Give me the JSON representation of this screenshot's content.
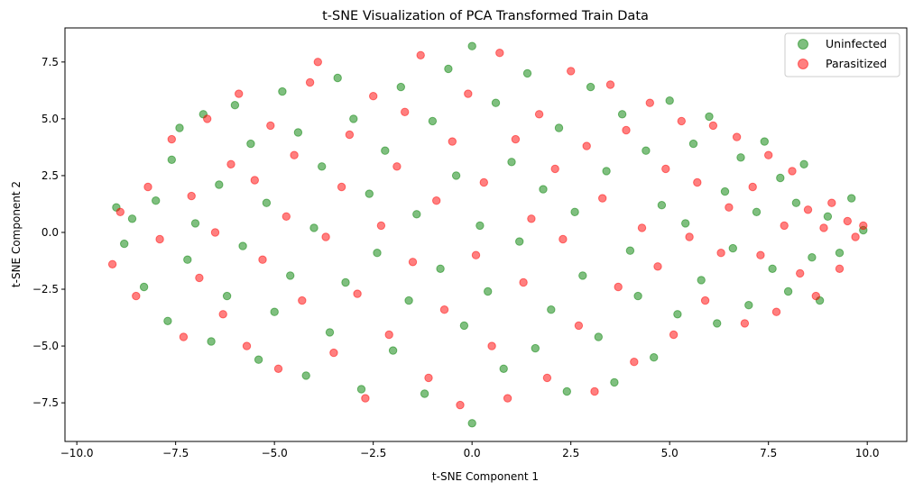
{
  "chart_data": {
    "type": "scatter",
    "title": "t-SNE Visualization of PCA Transformed Train Data",
    "xlabel": "t-SNE Component 1",
    "ylabel": "t-SNE Component 2",
    "xlim": [
      -10.3,
      11.0
    ],
    "ylim": [
      -9.2,
      9.0
    ],
    "xticks": [
      -10.0,
      -7.5,
      -5.0,
      -2.5,
      0.0,
      2.5,
      5.0,
      7.5,
      10.0
    ],
    "xtick_labels": [
      "−10.0",
      "−7.5",
      "−5.0",
      "−2.5",
      "0.0",
      "2.5",
      "5.0",
      "7.5",
      "10.0"
    ],
    "yticks": [
      -7.5,
      -5.0,
      -2.5,
      0.0,
      2.5,
      5.0,
      7.5
    ],
    "ytick_labels": [
      "−7.5",
      "−5.0",
      "−2.5",
      "0.0",
      "2.5",
      "5.0",
      "7.5"
    ],
    "grid": false,
    "legend_position": "top-right",
    "marker_alpha": 0.5,
    "series": [
      {
        "name": "Uninfected",
        "color": "#008000",
        "points": [
          [
            -9.0,
            1.1
          ],
          [
            -8.8,
            -0.5
          ],
          [
            -8.6,
            0.6
          ],
          [
            -8.3,
            -2.4
          ],
          [
            -8.0,
            1.4
          ],
          [
            -7.7,
            -3.9
          ],
          [
            -7.6,
            3.2
          ],
          [
            -7.4,
            4.6
          ],
          [
            -7.2,
            -1.2
          ],
          [
            -7.0,
            0.4
          ],
          [
            -6.8,
            5.2
          ],
          [
            -6.6,
            -4.8
          ],
          [
            -6.4,
            2.1
          ],
          [
            -6.2,
            -2.8
          ],
          [
            -6.0,
            5.6
          ],
          [
            -5.8,
            -0.6
          ],
          [
            -5.6,
            3.9
          ],
          [
            -5.4,
            -5.6
          ],
          [
            -5.2,
            1.3
          ],
          [
            -5.0,
            -3.5
          ],
          [
            -4.8,
            6.2
          ],
          [
            -4.6,
            -1.9
          ],
          [
            -4.4,
            4.4
          ],
          [
            -4.2,
            -6.3
          ],
          [
            -4.0,
            0.2
          ],
          [
            -3.8,
            2.9
          ],
          [
            -3.6,
            -4.4
          ],
          [
            -3.4,
            6.8
          ],
          [
            -3.2,
            -2.2
          ],
          [
            -3.0,
            5.0
          ],
          [
            -2.8,
            -6.9
          ],
          [
            -2.6,
            1.7
          ],
          [
            -2.4,
            -0.9
          ],
          [
            -2.2,
            3.6
          ],
          [
            -2.0,
            -5.2
          ],
          [
            -1.8,
            6.4
          ],
          [
            -1.6,
            -3.0
          ],
          [
            -1.4,
            0.8
          ],
          [
            -1.2,
            -7.1
          ],
          [
            -1.0,
            4.9
          ],
          [
            -0.8,
            -1.6
          ],
          [
            -0.6,
            7.2
          ],
          [
            -0.4,
            2.5
          ],
          [
            -0.2,
            -4.1
          ],
          [
            0.0,
            8.2
          ],
          [
            0.0,
            -8.4
          ],
          [
            0.2,
            0.3
          ],
          [
            0.4,
            -2.6
          ],
          [
            0.6,
            5.7
          ],
          [
            0.8,
            -6.0
          ],
          [
            1.0,
            3.1
          ],
          [
            1.2,
            -0.4
          ],
          [
            1.4,
            7.0
          ],
          [
            1.6,
            -5.1
          ],
          [
            1.8,
            1.9
          ],
          [
            2.0,
            -3.4
          ],
          [
            2.2,
            4.6
          ],
          [
            2.4,
            -7.0
          ],
          [
            2.6,
            0.9
          ],
          [
            2.8,
            -1.9
          ],
          [
            3.0,
            6.4
          ],
          [
            3.2,
            -4.6
          ],
          [
            3.4,
            2.7
          ],
          [
            3.6,
            -6.6
          ],
          [
            3.8,
            5.2
          ],
          [
            4.0,
            -0.8
          ],
          [
            4.2,
            -2.8
          ],
          [
            4.4,
            3.6
          ],
          [
            4.6,
            -5.5
          ],
          [
            4.8,
            1.2
          ],
          [
            5.0,
            5.8
          ],
          [
            5.2,
            -3.6
          ],
          [
            5.4,
            0.4
          ],
          [
            5.6,
            3.9
          ],
          [
            5.8,
            -2.1
          ],
          [
            6.0,
            5.1
          ],
          [
            6.2,
            -4.0
          ],
          [
            6.4,
            1.8
          ],
          [
            6.6,
            -0.7
          ],
          [
            6.8,
            3.3
          ],
          [
            7.0,
            -3.2
          ],
          [
            7.2,
            0.9
          ],
          [
            7.4,
            4.0
          ],
          [
            7.6,
            -1.6
          ],
          [
            7.8,
            2.4
          ],
          [
            8.0,
            -2.6
          ],
          [
            8.2,
            1.3
          ],
          [
            8.4,
            3.0
          ],
          [
            8.6,
            -1.1
          ],
          [
            8.8,
            -3.0
          ],
          [
            9.0,
            0.7
          ],
          [
            9.3,
            -0.9
          ],
          [
            9.6,
            1.5
          ],
          [
            9.9,
            0.1
          ]
        ]
      },
      {
        "name": "Parasitized",
        "color": "#ff0000",
        "points": [
          [
            -9.1,
            -1.4
          ],
          [
            -8.9,
            0.9
          ],
          [
            -8.5,
            -2.8
          ],
          [
            -8.2,
            2.0
          ],
          [
            -7.9,
            -0.3
          ],
          [
            -7.6,
            4.1
          ],
          [
            -7.3,
            -4.6
          ],
          [
            -7.1,
            1.6
          ],
          [
            -6.9,
            -2.0
          ],
          [
            -6.7,
            5.0
          ],
          [
            -6.5,
            0.0
          ],
          [
            -6.3,
            -3.6
          ],
          [
            -6.1,
            3.0
          ],
          [
            -5.9,
            6.1
          ],
          [
            -5.7,
            -5.0
          ],
          [
            -5.5,
            2.3
          ],
          [
            -5.3,
            -1.2
          ],
          [
            -5.1,
            4.7
          ],
          [
            -4.9,
            -6.0
          ],
          [
            -4.7,
            0.7
          ],
          [
            -4.5,
            3.4
          ],
          [
            -4.3,
            -3.0
          ],
          [
            -4.1,
            6.6
          ],
          [
            -3.9,
            7.5
          ],
          [
            -3.7,
            -0.2
          ],
          [
            -3.5,
            -5.3
          ],
          [
            -3.3,
            2.0
          ],
          [
            -3.1,
            4.3
          ],
          [
            -2.9,
            -2.7
          ],
          [
            -2.7,
            -7.3
          ],
          [
            -2.5,
            6.0
          ],
          [
            -2.3,
            0.3
          ],
          [
            -2.1,
            -4.5
          ],
          [
            -1.9,
            2.9
          ],
          [
            -1.7,
            5.3
          ],
          [
            -1.5,
            -1.3
          ],
          [
            -1.3,
            7.8
          ],
          [
            -1.1,
            -6.4
          ],
          [
            -0.9,
            1.4
          ],
          [
            -0.7,
            -3.4
          ],
          [
            -0.5,
            4.0
          ],
          [
            -0.3,
            -7.6
          ],
          [
            -0.1,
            6.1
          ],
          [
            0.1,
            -1.0
          ],
          [
            0.3,
            2.2
          ],
          [
            0.5,
            -5.0
          ],
          [
            0.7,
            7.9
          ],
          [
            0.9,
            -7.3
          ],
          [
            1.1,
            4.1
          ],
          [
            1.3,
            -2.2
          ],
          [
            1.5,
            0.6
          ],
          [
            1.7,
            5.2
          ],
          [
            1.9,
            -6.4
          ],
          [
            2.1,
            2.8
          ],
          [
            2.3,
            -0.3
          ],
          [
            2.5,
            7.1
          ],
          [
            2.7,
            -4.1
          ],
          [
            2.9,
            3.8
          ],
          [
            3.1,
            -7.0
          ],
          [
            3.3,
            1.5
          ],
          [
            3.5,
            6.5
          ],
          [
            3.7,
            -2.4
          ],
          [
            3.9,
            4.5
          ],
          [
            4.1,
            -5.7
          ],
          [
            4.3,
            0.2
          ],
          [
            4.5,
            5.7
          ],
          [
            4.7,
            -1.5
          ],
          [
            4.9,
            2.8
          ],
          [
            5.1,
            -4.5
          ],
          [
            5.3,
            4.9
          ],
          [
            5.5,
            -0.2
          ],
          [
            5.7,
            2.2
          ],
          [
            5.9,
            -3.0
          ],
          [
            6.1,
            4.7
          ],
          [
            6.3,
            -0.9
          ],
          [
            6.5,
            1.1
          ],
          [
            6.7,
            4.2
          ],
          [
            6.9,
            -4.0
          ],
          [
            7.1,
            2.0
          ],
          [
            7.3,
            -1.0
          ],
          [
            7.5,
            3.4
          ],
          [
            7.7,
            -3.5
          ],
          [
            7.9,
            0.3
          ],
          [
            8.1,
            2.7
          ],
          [
            8.3,
            -1.8
          ],
          [
            8.5,
            1.0
          ],
          [
            8.7,
            -2.8
          ],
          [
            8.9,
            0.2
          ],
          [
            9.1,
            1.3
          ],
          [
            9.3,
            -1.6
          ],
          [
            9.5,
            0.5
          ],
          [
            9.7,
            -0.2
          ],
          [
            9.9,
            0.3
          ]
        ]
      }
    ]
  }
}
